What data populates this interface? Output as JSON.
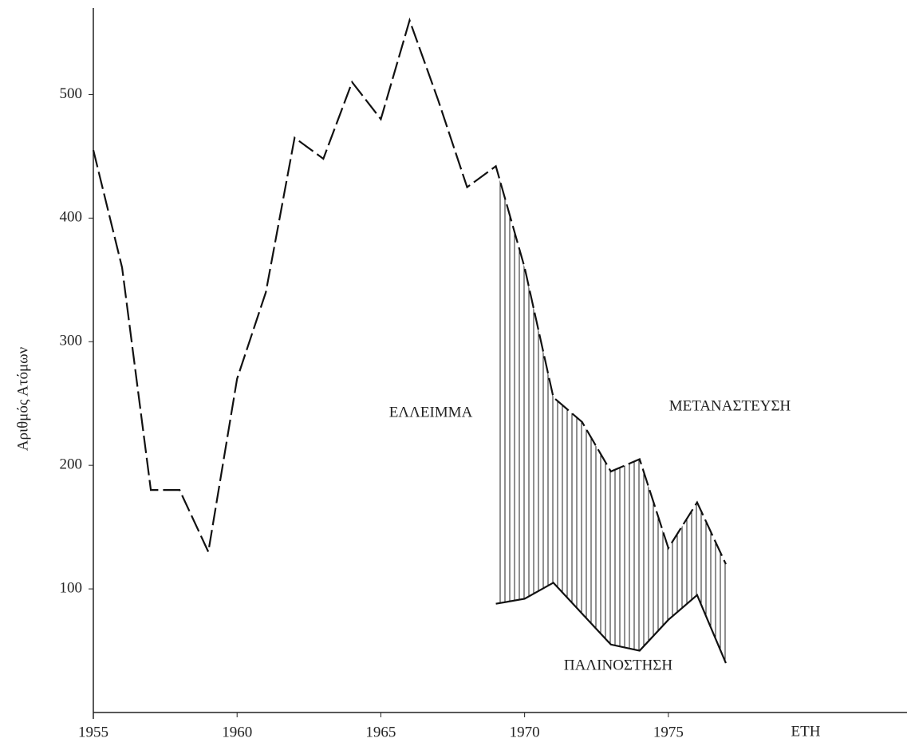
{
  "chart_data": {
    "type": "line",
    "y_label": "Αριθμός Ατόμων",
    "x_label": "ΕΤΗ",
    "annotations": [
      "ΕΛΛΕΙΜΜΑ"
    ],
    "series": [
      {
        "name": "ΜΕΤΑΝΑΣΤΕΥΣΗ",
        "color": "#111111",
        "x": [
          1955,
          1956,
          1957,
          1958,
          1959,
          1960,
          1961,
          1962,
          1963,
          1964,
          1965,
          1966,
          1967,
          1968,
          1969,
          1970,
          1971,
          1972,
          1973,
          1974,
          1975,
          1976,
          1977
        ],
        "values": [
          455,
          360,
          180,
          180,
          130,
          270,
          340,
          465,
          448,
          510,
          480,
          560,
          495,
          425,
          442,
          360,
          255,
          235,
          195,
          205,
          133,
          170,
          120
        ]
      },
      {
        "name": "ΠΑΛΙΝΟΣΤΗΣΗ",
        "color": "#111111",
        "x": [
          1969,
          1970,
          1971,
          1972,
          1973,
          1974,
          1975,
          1976,
          1977
        ],
        "values": [
          88,
          92,
          105,
          80,
          55,
          50,
          75,
          95,
          40
        ]
      }
    ],
    "xlim": [
      1955,
      1983.3
    ],
    "xticks": [
      1955,
      1960,
      1965,
      1970,
      1975
    ],
    "ylim": [
      0,
      570
    ],
    "yticks": [
      100,
      200,
      300,
      400,
      500
    ],
    "grid": false
  }
}
